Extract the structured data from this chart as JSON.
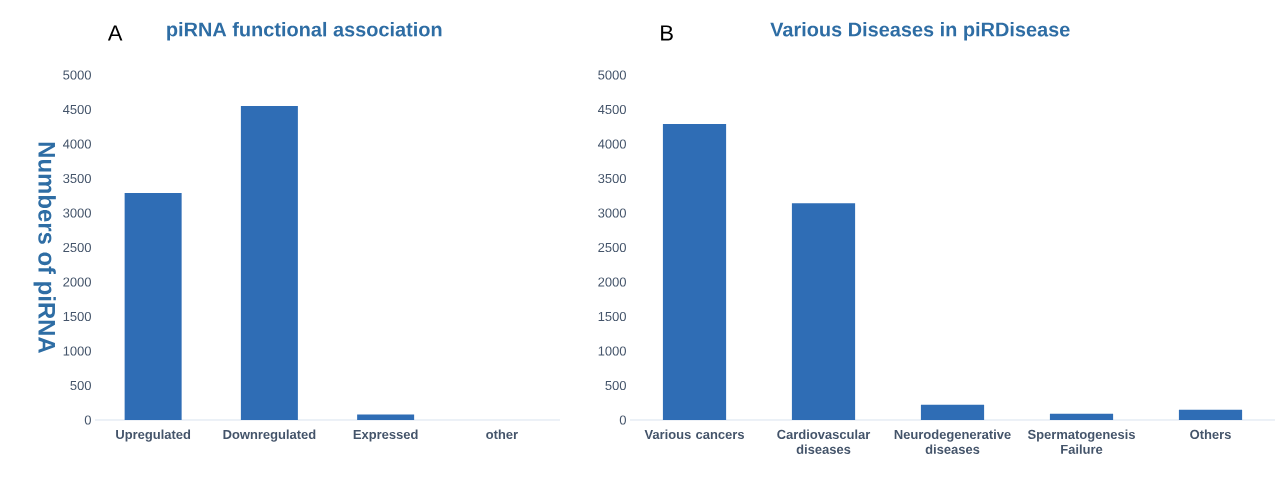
{
  "chart_data": [
    {
      "type": "bar",
      "title": "piRNA functional association",
      "ylabel": "Numbers of piRNA",
      "annotations": [
        "A"
      ],
      "categories": [
        "Upregulated",
        "Downregulated",
        "Expressed",
        "other"
      ],
      "values": [
        3290,
        4550,
        80,
        0
      ],
      "color": "#2f6db5",
      "ylim": [
        0,
        5000
      ],
      "yticks": [
        0,
        500,
        1000,
        1500,
        2000,
        2500,
        3000,
        3500,
        4000,
        4500,
        5000
      ]
    },
    {
      "type": "bar",
      "title": "Various Diseases in piRDisease",
      "annotations": [
        "B"
      ],
      "categories": [
        "Various cancers",
        "Cardiovascular diseases",
        "Neurodegenerative diseases",
        "Spermatogenesis Failure",
        "Others"
      ],
      "values": [
        4290,
        3140,
        220,
        90,
        150
      ],
      "color": "#2f6db5",
      "ylim": [
        0,
        5000
      ],
      "yticks": [
        0,
        500,
        1000,
        1500,
        2000,
        2500,
        3000,
        3500,
        4000,
        4500,
        5000
      ]
    }
  ]
}
